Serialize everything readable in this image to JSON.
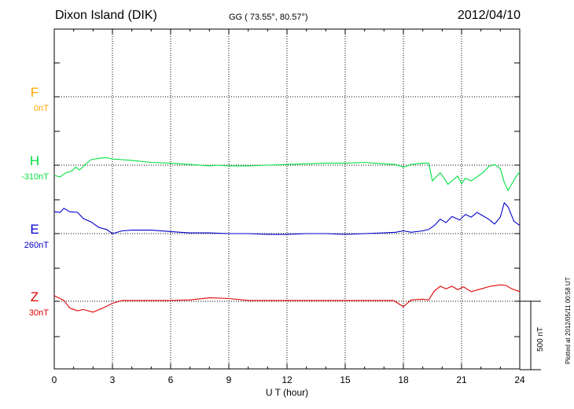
{
  "header": {
    "station": "Dixon Island (DIK)",
    "coords": "GG ( 73.55°,  80.57°)",
    "date": "2012/04/10"
  },
  "footer": {
    "plotted": "Plotted at 2012/05/11 00:58 UT",
    "scale_label": "500 nT"
  },
  "colors": {
    "F": "#ffa500",
    "H": "#00e040",
    "E": "#0000cc",
    "Z": "#e00000",
    "grid": "#000000"
  },
  "chart_data": {
    "type": "line",
    "title": "Dixon Island (DIK)",
    "xlabel": "U T (hour)",
    "xlim": [
      0,
      24
    ],
    "x_ticks": [
      0,
      3,
      6,
      9,
      12,
      15,
      18,
      21,
      24
    ],
    "x_tick_labels": [
      "0",
      "3",
      "6",
      "9",
      "12",
      "15",
      "18",
      "21",
      "24"
    ],
    "scale_nT": 500,
    "grid": true,
    "series": [
      {
        "name": "F",
        "baseline_label": "0nT",
        "points": []
      },
      {
        "name": "H",
        "baseline_label": "-310nT",
        "points": [
          [
            0,
            -75
          ],
          [
            0.3,
            -85
          ],
          [
            0.6,
            -55
          ],
          [
            0.9,
            -45
          ],
          [
            1.1,
            -15
          ],
          [
            1.3,
            -35
          ],
          [
            1.6,
            5
          ],
          [
            1.9,
            40
          ],
          [
            2.3,
            50
          ],
          [
            2.7,
            55
          ],
          [
            3,
            45
          ],
          [
            3.5,
            40
          ],
          [
            4,
            35
          ],
          [
            5,
            20
          ],
          [
            6,
            15
          ],
          [
            7,
            5
          ],
          [
            8,
            -5
          ],
          [
            8.4,
            0
          ],
          [
            9,
            -5
          ],
          [
            10,
            -5
          ],
          [
            11,
            0
          ],
          [
            12,
            5
          ],
          [
            13,
            10
          ],
          [
            14,
            15
          ],
          [
            15,
            15
          ],
          [
            16,
            20
          ],
          [
            16.5,
            15
          ],
          [
            17,
            10
          ],
          [
            17.6,
            5
          ],
          [
            18,
            -15
          ],
          [
            18.4,
            5
          ],
          [
            19,
            15
          ],
          [
            19.3,
            15
          ],
          [
            19.5,
            -115
          ],
          [
            19.7,
            -85
          ],
          [
            19.9,
            -55
          ],
          [
            20.1,
            -95
          ],
          [
            20.3,
            -140
          ],
          [
            20.5,
            -115
          ],
          [
            20.8,
            -80
          ],
          [
            21,
            -135
          ],
          [
            21.2,
            -95
          ],
          [
            21.5,
            -115
          ],
          [
            21.8,
            -85
          ],
          [
            22.1,
            -55
          ],
          [
            22.4,
            -10
          ],
          [
            22.7,
            5
          ],
          [
            23,
            -25
          ],
          [
            23.2,
            -125
          ],
          [
            23.4,
            -185
          ],
          [
            23.6,
            -135
          ],
          [
            23.8,
            -85
          ],
          [
            24,
            -50
          ]
        ]
      },
      {
        "name": "E",
        "baseline_label": "260nT",
        "points": [
          [
            0,
            160
          ],
          [
            0.3,
            155
          ],
          [
            0.5,
            185
          ],
          [
            0.8,
            160
          ],
          [
            1.2,
            155
          ],
          [
            1.5,
            110
          ],
          [
            1.9,
            85
          ],
          [
            2.3,
            45
          ],
          [
            2.7,
            30
          ],
          [
            3,
            0
          ],
          [
            3.5,
            20
          ],
          [
            4,
            25
          ],
          [
            5,
            25
          ],
          [
            6,
            15
          ],
          [
            6.5,
            10
          ],
          [
            7,
            5
          ],
          [
            8,
            5
          ],
          [
            9,
            0
          ],
          [
            10,
            0
          ],
          [
            11,
            -5
          ],
          [
            12,
            -5
          ],
          [
            13,
            0
          ],
          [
            14,
            0
          ],
          [
            15,
            -5
          ],
          [
            16,
            0
          ],
          [
            17,
            5
          ],
          [
            17.6,
            10
          ],
          [
            18,
            20
          ],
          [
            18.4,
            10
          ],
          [
            19,
            20
          ],
          [
            19.3,
            30
          ],
          [
            19.6,
            60
          ],
          [
            19.9,
            105
          ],
          [
            20.2,
            80
          ],
          [
            20.5,
            125
          ],
          [
            20.9,
            100
          ],
          [
            21.2,
            140
          ],
          [
            21.5,
            120
          ],
          [
            21.8,
            155
          ],
          [
            22.1,
            130
          ],
          [
            22.4,
            105
          ],
          [
            22.7,
            70
          ],
          [
            23,
            120
          ],
          [
            23.2,
            225
          ],
          [
            23.4,
            195
          ],
          [
            23.7,
            90
          ],
          [
            24,
            60
          ]
        ]
      },
      {
        "name": "Z",
        "baseline_label": "30nT",
        "points": [
          [
            0,
            40
          ],
          [
            0.3,
            20
          ],
          [
            0.5,
            5
          ],
          [
            0.8,
            -50
          ],
          [
            1.2,
            -70
          ],
          [
            1.5,
            -60
          ],
          [
            2,
            -80
          ],
          [
            2.5,
            -50
          ],
          [
            3,
            -15
          ],
          [
            3.5,
            5
          ],
          [
            5,
            5
          ],
          [
            6,
            5
          ],
          [
            7,
            10
          ],
          [
            8,
            25
          ],
          [
            9,
            20
          ],
          [
            10,
            5
          ],
          [
            12,
            5
          ],
          [
            14,
            5
          ],
          [
            16,
            5
          ],
          [
            17.5,
            5
          ],
          [
            18,
            -40
          ],
          [
            18.4,
            10
          ],
          [
            19,
            15
          ],
          [
            19.3,
            10
          ],
          [
            19.6,
            75
          ],
          [
            19.9,
            110
          ],
          [
            20.2,
            90
          ],
          [
            20.5,
            110
          ],
          [
            20.8,
            85
          ],
          [
            21.1,
            105
          ],
          [
            21.5,
            70
          ],
          [
            22,
            90
          ],
          [
            22.5,
            110
          ],
          [
            23,
            120
          ],
          [
            23.3,
            115
          ],
          [
            23.6,
            90
          ],
          [
            24,
            70
          ]
        ]
      }
    ]
  }
}
